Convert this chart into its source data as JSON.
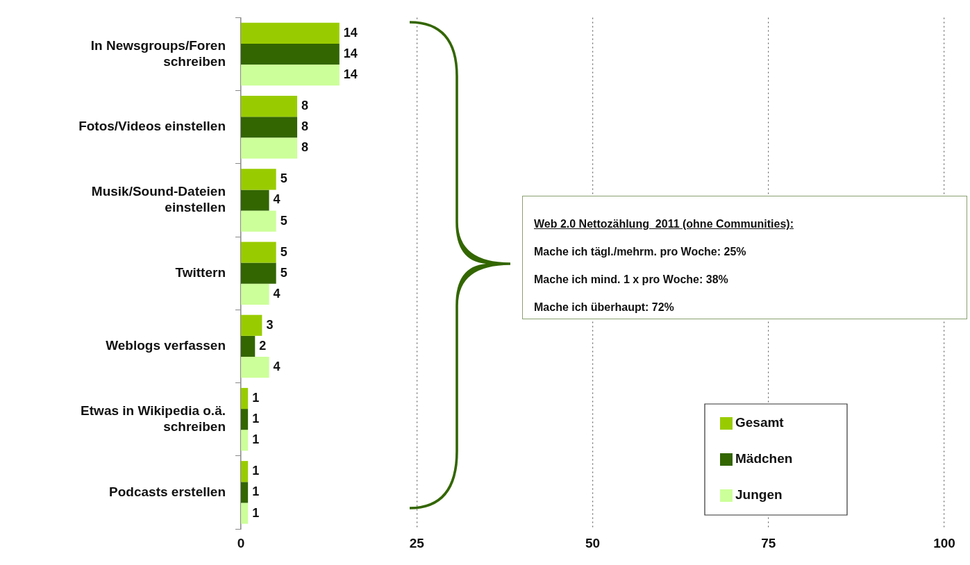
{
  "chart_data": {
    "type": "bar",
    "orientation": "horizontal",
    "categories": [
      "In Newsgroups/Foren schreiben",
      "Fotos/Videos einstellen",
      "Musik/Sound-Dateien einstellen",
      "Twittern",
      "Weblogs verfassen",
      "Etwas in Wikipedia o.ä. schreiben",
      "Podcasts erstellen"
    ],
    "series": [
      {
        "name": "Gesamt",
        "color": "#99cc00",
        "values": [
          14,
          8,
          5,
          5,
          3,
          1,
          1
        ]
      },
      {
        "name": "Mädchen",
        "color": "#336600",
        "values": [
          14,
          8,
          4,
          5,
          2,
          1,
          1
        ]
      },
      {
        "name": "Jungen",
        "color": "#ccff99",
        "values": [
          14,
          8,
          5,
          4,
          4,
          1,
          1
        ]
      }
    ],
    "xlim": [
      0,
      100
    ],
    "xticks": [
      0,
      25,
      50,
      75,
      100
    ],
    "grid": "x",
    "legend": "bottom right",
    "data_labels": true,
    "annotations": [
      "Web 2.0 Nettozählung  2011 (ohne Communities):",
      "Mache ich tägl./mehrm. pro Woche: 25%",
      "Mache ich mind. 1 x pro Woche: 38%",
      "Mache ich überhaupt: 72%"
    ]
  }
}
